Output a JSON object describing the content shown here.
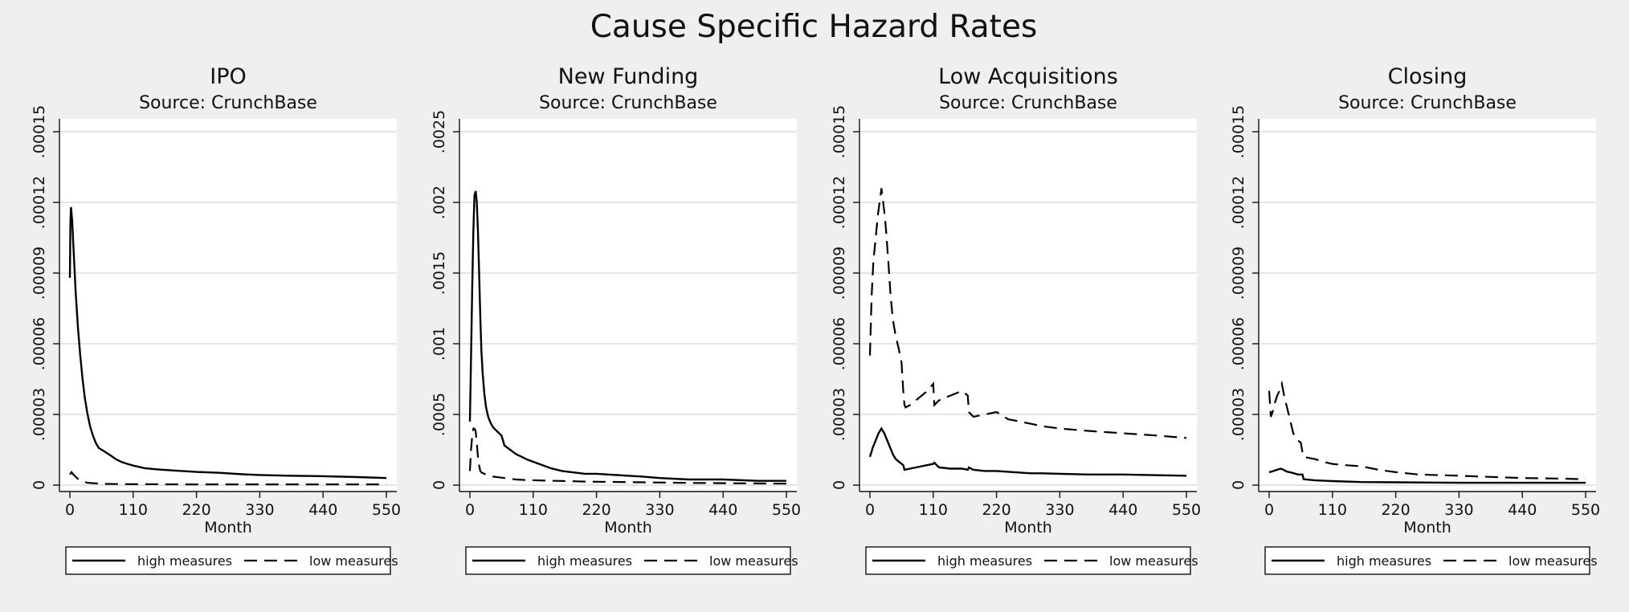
{
  "figure": {
    "title": "Cause Specific Hazard Rates"
  },
  "chart_data": [
    {
      "type": "line",
      "title": "IPO",
      "subtitle": "Source: CrunchBase",
      "xlabel": "Month",
      "xlim": [
        0,
        550
      ],
      "ylim": [
        0,
        0.00015
      ],
      "xticks": [
        0,
        110,
        220,
        330,
        440,
        550
      ],
      "xtick_labels": [
        "0",
        "110",
        "220",
        "330",
        "440",
        "550"
      ],
      "yticks": [
        0,
        3e-05,
        6e-05,
        9e-05,
        0.00012,
        0.00015
      ],
      "ytick_labels": [
        "0",
        ".00003",
        ".00006",
        ".00009",
        ".00012",
        ".00015"
      ],
      "grid": true,
      "legend_position": "bottom",
      "series": [
        {
          "name": "high measures",
          "style": "solid",
          "x": [
            0,
            1,
            2,
            4,
            7,
            10,
            14,
            18,
            22,
            26,
            30,
            35,
            40,
            45,
            50,
            60,
            70,
            80,
            90,
            100,
            110,
            130,
            150,
            180,
            220,
            260,
            300,
            330,
            380,
            440,
            500,
            550
          ],
          "y": [
            8.8e-05,
            0.000112,
            0.000118,
            0.000112,
            9.7e-05,
            8.2e-05,
            6.7e-05,
            5.5e-05,
            4.5e-05,
            3.7e-05,
            3.1e-05,
            2.5e-05,
            2.1e-05,
            1.8e-05,
            1.58e-05,
            1.43e-05,
            1.27e-05,
            1.1e-05,
            9.8e-06,
            9e-06,
            8.3e-06,
            7.2e-06,
            6.7e-06,
            6.2e-06,
            5.6e-06,
            5.2e-06,
            4.6e-06,
            4.3e-06,
            4e-06,
            3.8e-06,
            3.4e-06,
            3e-06
          ]
        },
        {
          "name": "low measures",
          "style": "dashed",
          "x": [
            0,
            3,
            6,
            10,
            15,
            20,
            30,
            45,
            60,
            100,
            200,
            300,
            400,
            550
          ],
          "y": [
            4.5e-06,
            5.5e-06,
            4.5e-06,
            3.5e-06,
            2.5e-06,
            1.8e-06,
            1e-06,
            7e-07,
            5e-07,
            4e-07,
            3e-07,
            3e-07,
            3e-07,
            3e-07
          ]
        }
      ]
    },
    {
      "type": "line",
      "title": "New Funding",
      "subtitle": "Source: CrunchBase",
      "xlabel": "Month",
      "xlim": [
        0,
        550
      ],
      "ylim": [
        0,
        0.0025
      ],
      "xticks": [
        0,
        110,
        220,
        330,
        440,
        550
      ],
      "xtick_labels": [
        "0",
        "110",
        "220",
        "330",
        "440",
        "550"
      ],
      "yticks": [
        0,
        0.0005,
        0.001,
        0.0015,
        0.002,
        0.0025
      ],
      "ytick_labels": [
        "0",
        ".0005",
        ".001",
        ".0015",
        ".002",
        ".0025"
      ],
      "grid": true,
      "legend_position": "bottom",
      "series": [
        {
          "name": "high measures",
          "style": "solid",
          "x": [
            0,
            2,
            4,
            6,
            8,
            10,
            12,
            14,
            16,
            18,
            20,
            22,
            25,
            28,
            32,
            36,
            40,
            45,
            50,
            55,
            60,
            70,
            80,
            100,
            120,
            140,
            160,
            180,
            200,
            220,
            260,
            300,
            330,
            380,
            440,
            500,
            550
          ],
          "y": [
            0.00045,
            0.0009,
            0.0014,
            0.0018,
            0.00205,
            0.00208,
            0.002,
            0.0018,
            0.0015,
            0.0012,
            0.00095,
            0.0008,
            0.00065,
            0.00055,
            0.00048,
            0.00044,
            0.00041,
            0.00039,
            0.00037,
            0.00035,
            0.00028,
            0.00025,
            0.00022,
            0.00018,
            0.00015,
            0.00012,
            0.0001,
            9e-05,
            8e-05,
            8e-05,
            7e-05,
            6e-05,
            5e-05,
            4e-05,
            4e-05,
            3e-05,
            3e-05
          ]
        },
        {
          "name": "low measures",
          "style": "dashed",
          "x": [
            0,
            2,
            4,
            6,
            8,
            10,
            12,
            14,
            16,
            18,
            20,
            25,
            30,
            40,
            60,
            80,
            100,
            150,
            200,
            300,
            400,
            550
          ],
          "y": [
            0.0001,
            0.00025,
            0.00035,
            0.0004,
            0.0004,
            0.00038,
            0.0003,
            0.0002,
            0.00014,
            0.0001,
            9e-05,
            8e-05,
            7e-05,
            6e-05,
            5e-05,
            4e-05,
            3.5e-05,
            3e-05,
            2.5e-05,
            2e-05,
            1.5e-05,
            1e-05
          ]
        }
      ]
    },
    {
      "type": "line",
      "title": "Low Acquisitions",
      "subtitle": "Source: CrunchBase",
      "xlabel": "Month",
      "xlim": [
        0,
        550
      ],
      "ylim": [
        0,
        0.00015
      ],
      "xticks": [
        0,
        110,
        220,
        330,
        440,
        550
      ],
      "xtick_labels": [
        "0",
        "110",
        "220",
        "330",
        "440",
        "550"
      ],
      "yticks": [
        0,
        3e-05,
        6e-05,
        9e-05,
        0.00012,
        0.00015
      ],
      "ytick_labels": [
        "0",
        ".00003",
        ".00006",
        ".00009",
        ".00012",
        ".00015"
      ],
      "grid": true,
      "legend_position": "bottom",
      "series": [
        {
          "name": "high measures",
          "style": "solid",
          "x": [
            0,
            5,
            10,
            15,
            20,
            25,
            30,
            35,
            40,
            45,
            50,
            55,
            58,
            60,
            70,
            80,
            90,
            100,
            110,
            112,
            120,
            140,
            160,
            170,
            172,
            180,
            200,
            220,
            250,
            280,
            300,
            330,
            380,
            440,
            500,
            550
          ],
          "y": [
            1.2e-05,
            1.6e-05,
            1.9e-05,
            2.2e-05,
            2.4e-05,
            2.2e-05,
            1.9e-05,
            1.6e-05,
            1.3e-05,
            1.1e-05,
            1e-05,
            9e-06,
            8.5e-06,
            6.5e-06,
            7e-06,
            7.5e-06,
            8e-06,
            8.5e-06,
            9e-06,
            9.5e-06,
            7.5e-06,
            7e-06,
            7e-06,
            6.5e-06,
            7.5e-06,
            6.5e-06,
            6e-06,
            6e-06,
            5.5e-06,
            5e-06,
            5e-06,
            4.8e-06,
            4.5e-06,
            4.5e-06,
            4.2e-06,
            4e-06
          ]
        },
        {
          "name": "low measures",
          "style": "dashed",
          "x": [
            0,
            3,
            6,
            10,
            14,
            18,
            20,
            22,
            24,
            26,
            28,
            32,
            36,
            40,
            45,
            50,
            55,
            58,
            60,
            62,
            70,
            80,
            90,
            100,
            110,
            112,
            120,
            140,
            160,
            170,
            172,
            180,
            200,
            220,
            240,
            260,
            280,
            300,
            330,
            380,
            440,
            500,
            550
          ],
          "y": [
            5.5e-05,
            8e-05,
            9.5e-05,
            0.000105,
            0.000115,
            0.000122,
            0.000126,
            0.000122,
            0.000118,
            0.000114,
            0.000108,
            9.5e-05,
            8e-05,
            7e-05,
            6.3e-05,
            5.8e-05,
            5.2e-05,
            4e-05,
            3.4e-05,
            3.3e-05,
            3.4e-05,
            3.6e-05,
            3.8e-05,
            4e-05,
            4.3e-05,
            3.4e-05,
            3.6e-05,
            3.8e-05,
            4e-05,
            3.8e-05,
            3.1e-05,
            2.9e-05,
            3e-05,
            3.1e-05,
            2.8e-05,
            2.7e-05,
            2.6e-05,
            2.5e-05,
            2.4e-05,
            2.3e-05,
            2.2e-05,
            2.1e-05,
            2e-05
          ]
        }
      ]
    },
    {
      "type": "line",
      "title": "Closing",
      "subtitle": "Source: CrunchBase",
      "xlabel": "Month",
      "xlim": [
        0,
        550
      ],
      "ylim": [
        0,
        0.00015
      ],
      "xticks": [
        0,
        110,
        220,
        330,
        440,
        550
      ],
      "xtick_labels": [
        "0",
        "110",
        "220",
        "330",
        "440",
        "550"
      ],
      "yticks": [
        0,
        3e-05,
        6e-05,
        9e-05,
        0.00012,
        0.00015
      ],
      "ytick_labels": [
        "0",
        ".00003",
        ".00006",
        ".00009",
        ".00012",
        ".00015"
      ],
      "grid": true,
      "legend_position": "bottom",
      "series": [
        {
          "name": "high measures",
          "style": "solid",
          "x": [
            0,
            5,
            10,
            15,
            20,
            25,
            30,
            40,
            50,
            58,
            60,
            80,
            110,
            160,
            220,
            330,
            440,
            550
          ],
          "y": [
            5.5e-06,
            5.8e-06,
            6.2e-06,
            6.6e-06,
            7e-06,
            6.5e-06,
            5.8e-06,
            5.2e-06,
            4.5e-06,
            4.5e-06,
            2.5e-06,
            2e-06,
            1.7e-06,
            1.3e-06,
            1.2e-06,
            1e-06,
            1e-06,
            1e-06
          ]
        },
        {
          "name": "low measures",
          "style": "dashed",
          "x": [
            0,
            3,
            6,
            10,
            14,
            18,
            22,
            26,
            30,
            34,
            38,
            42,
            46,
            50,
            55,
            58,
            60,
            70,
            80,
            100,
            110,
            130,
            160,
            190,
            220,
            260,
            300,
            330,
            380,
            440,
            500,
            550
          ],
          "y": [
            4e-05,
            2.9e-05,
            3.1e-05,
            3.5e-05,
            3.8e-05,
            4e-05,
            4.3e-05,
            3.8e-05,
            3.4e-05,
            3e-05,
            2.6e-05,
            2.2e-05,
            2e-05,
            1.9e-05,
            1.8e-05,
            1.4e-05,
            1.2e-05,
            1.15e-05,
            1.1e-05,
            9.5e-06,
            9e-06,
            8.5e-06,
            8e-06,
            6.5e-06,
            5.5e-06,
            4.5e-06,
            4.2e-06,
            4e-06,
            3.5e-06,
            3e-06,
            2.8e-06,
            2.5e-06
          ]
        }
      ]
    }
  ]
}
